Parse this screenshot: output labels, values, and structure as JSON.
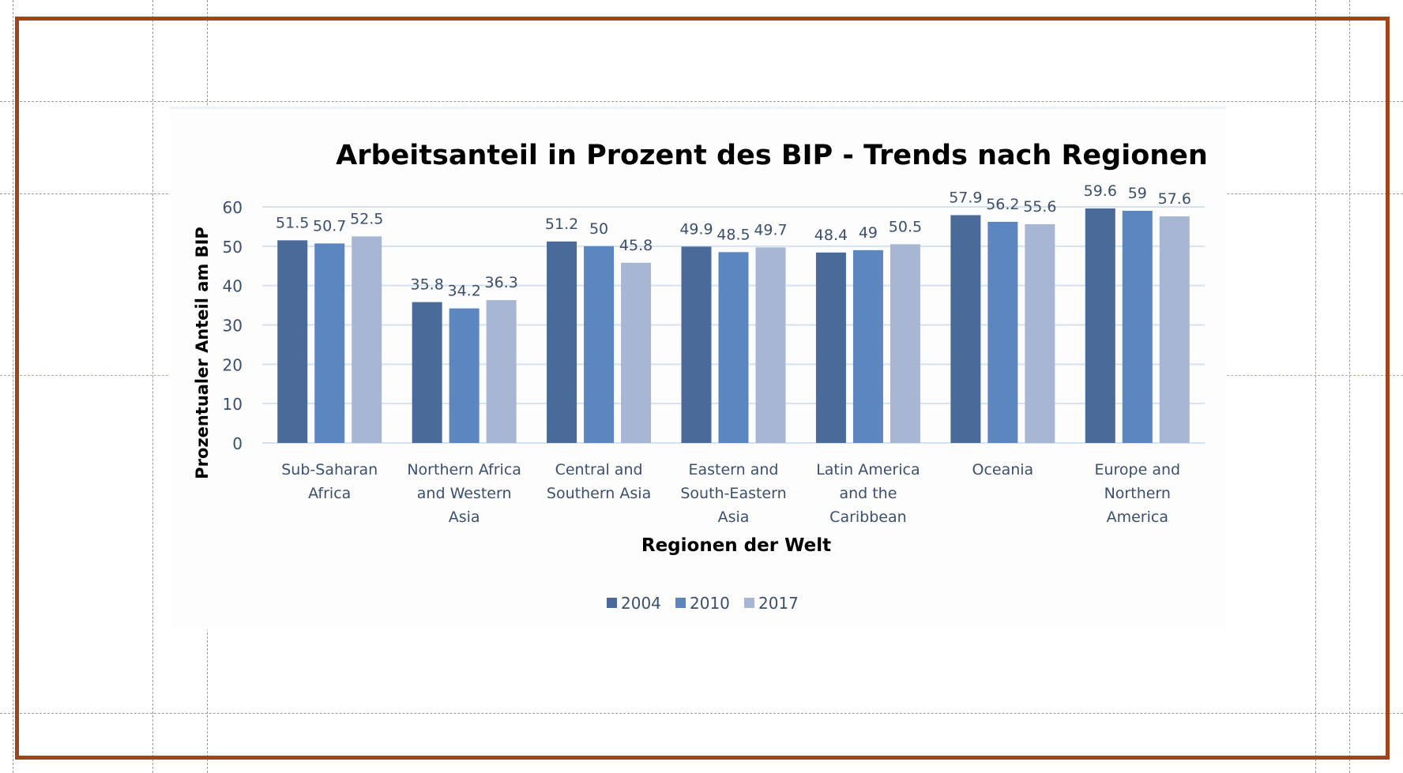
{
  "chart_data": {
    "type": "bar",
    "title": "Arbeitsanteil in Prozent des BIP - Trends nach Regionen",
    "xlabel": "Regionen der Welt",
    "ylabel": "Prozentualer Anteil am BIP",
    "ylim": [
      0,
      60
    ],
    "yticks": [
      "0",
      "10",
      "20",
      "30",
      "40",
      "50",
      "60"
    ],
    "grid": true,
    "legend_position": "bottom",
    "categories": [
      [
        "Sub-Saharan",
        "Africa"
      ],
      [
        "Northern Africa",
        "and Western",
        "Asia"
      ],
      [
        "Central and",
        "Southern Asia"
      ],
      [
        "Eastern and",
        "South-Eastern",
        "Asia"
      ],
      [
        "Latin America",
        "and the",
        "Caribbean"
      ],
      [
        "Oceania"
      ],
      [
        "Europe and",
        "Northern",
        "America"
      ]
    ],
    "series": [
      {
        "name": "2004",
        "color": "#4a6a9a",
        "values": [
          51.5,
          35.8,
          51.2,
          49.9,
          48.4,
          57.9,
          59.6
        ]
      },
      {
        "name": "2010",
        "color": "#5b86c0",
        "values": [
          50.7,
          34.2,
          50,
          48.5,
          49,
          56.2,
          59
        ]
      },
      {
        "name": "2017",
        "color": "#a7b7d3",
        "values": [
          52.5,
          36.3,
          45.8,
          49.7,
          50.5,
          55.6,
          57.6
        ]
      }
    ],
    "data_labels": [
      [
        "51.5",
        "35.8",
        "51.2",
        "49.9",
        "48.4",
        "57.9",
        "59.6"
      ],
      [
        "50.7",
        "34.2",
        "50",
        "48.5",
        "49",
        "56.2",
        "59"
      ],
      [
        "52.5",
        "36.3",
        "45.8",
        "49.7",
        "50.5",
        "55.6",
        "57.6"
      ]
    ]
  },
  "colors": {
    "frame": "#a0441a",
    "axis_text": "#3b4f6e",
    "gridline": "#d6e1ee"
  }
}
